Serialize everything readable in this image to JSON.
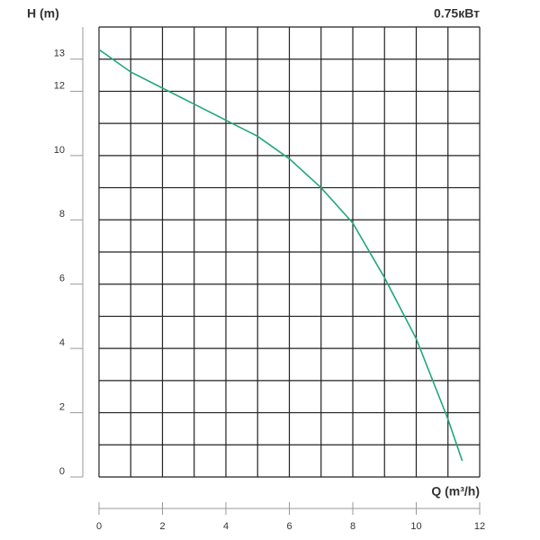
{
  "chart_data": {
    "type": "line",
    "title": "0.75кВт",
    "y_label": "H (m)",
    "x_label": "Q (m³/h)",
    "x": [
      0,
      1,
      2,
      3,
      4,
      5,
      6,
      7,
      8,
      9,
      10,
      11,
      11.45
    ],
    "series": [
      {
        "name": "H",
        "color": "#22a77c",
        "values": [
          13.3,
          12.6,
          12.1,
          11.6,
          11.1,
          10.6,
          9.9,
          9.0,
          7.9,
          6.2,
          4.3,
          1.8,
          0.5
        ]
      }
    ],
    "xlim": [
      0,
      12
    ],
    "ylim": [
      0,
      14
    ],
    "xticks": [
      0,
      2,
      4,
      6,
      8,
      10,
      12
    ],
    "yticks": [
      0,
      2,
      4,
      6,
      8,
      10,
      12,
      13
    ],
    "grid": true
  }
}
